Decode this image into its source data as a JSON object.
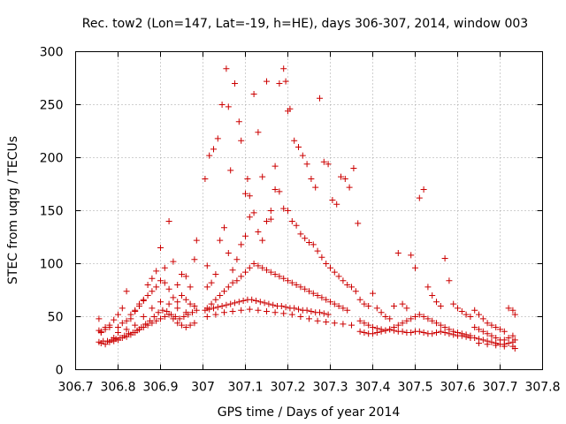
{
  "chart_data": {
    "type": "scatter",
    "title": "Rec. tow2 (Lon=147, Lat=-19, h=HE), days 306-307, 2014, window 003",
    "xlabel": "GPS time / Days of year 2014",
    "ylabel": "STEC from uqrg / TECUs",
    "xlim": [
      306.7,
      307.8
    ],
    "ylim": [
      0,
      300
    ],
    "xticks": [
      306.7,
      306.8,
      306.9,
      307,
      307.1,
      307.2,
      307.3,
      307.4,
      307.5,
      307.6,
      307.7,
      307.8
    ],
    "xtick_labels": [
      "306.7",
      "306.8",
      "306.9",
      "307",
      "307.1",
      "307.2",
      "307.3",
      "307.4",
      "307.5",
      "307.6",
      "307.7",
      "307.8"
    ],
    "yticks": [
      0,
      50,
      100,
      150,
      200,
      250,
      300
    ],
    "ytick_labels": [
      "0",
      "50",
      "100",
      "150",
      "200",
      "250",
      "300"
    ],
    "grid": true,
    "marker": "plus",
    "color": "#cc0000",
    "points": [
      [
        306.755,
        48
      ],
      [
        306.76,
        36
      ],
      [
        306.77,
        40
      ],
      [
        306.78,
        42
      ],
      [
        306.79,
        47
      ],
      [
        306.8,
        52
      ],
      [
        306.81,
        58
      ],
      [
        306.82,
        74
      ],
      [
        306.83,
        48
      ],
      [
        306.84,
        55
      ],
      [
        306.85,
        60
      ],
      [
        306.86,
        65
      ],
      [
        306.87,
        80
      ],
      [
        306.88,
        86
      ],
      [
        306.89,
        93
      ],
      [
        306.9,
        115
      ],
      [
        306.91,
        82
      ],
      [
        306.92,
        140
      ],
      [
        306.93,
        102
      ],
      [
        306.94,
        80
      ],
      [
        306.95,
        90
      ],
      [
        306.96,
        88
      ],
      [
        306.97,
        78
      ],
      [
        306.98,
        104
      ],
      [
        306.985,
        122
      ],
      [
        306.755,
        37
      ],
      [
        306.76,
        35
      ],
      [
        306.77,
        38
      ],
      [
        306.78,
        40
      ],
      [
        306.79,
        30
      ],
      [
        306.8,
        40
      ],
      [
        306.81,
        44
      ],
      [
        306.82,
        46
      ],
      [
        306.83,
        52
      ],
      [
        306.84,
        56
      ],
      [
        306.85,
        62
      ],
      [
        306.86,
        66
      ],
      [
        306.87,
        70
      ],
      [
        306.88,
        74
      ],
      [
        306.89,
        78
      ],
      [
        306.9,
        84
      ],
      [
        306.91,
        96
      ],
      [
        306.92,
        76
      ],
      [
        306.93,
        68
      ],
      [
        306.94,
        64
      ],
      [
        306.95,
        70
      ],
      [
        306.96,
        66
      ],
      [
        306.97,
        62
      ],
      [
        306.98,
        60
      ],
      [
        306.755,
        26
      ],
      [
        306.765,
        27
      ],
      [
        306.775,
        27
      ],
      [
        306.785,
        28
      ],
      [
        306.795,
        29
      ],
      [
        306.805,
        30
      ],
      [
        306.815,
        32
      ],
      [
        306.825,
        34
      ],
      [
        306.835,
        35
      ],
      [
        306.845,
        37
      ],
      [
        306.855,
        40
      ],
      [
        306.865,
        43
      ],
      [
        306.875,
        46
      ],
      [
        306.885,
        50
      ],
      [
        306.895,
        54
      ],
      [
        306.905,
        56
      ],
      [
        306.915,
        55
      ],
      [
        306.925,
        52
      ],
      [
        306.935,
        50
      ],
      [
        306.945,
        48
      ],
      [
        306.955,
        50
      ],
      [
        306.965,
        52
      ],
      [
        306.975,
        54
      ],
      [
        306.985,
        56
      ],
      [
        306.76,
        25
      ],
      [
        306.77,
        24
      ],
      [
        306.78,
        26
      ],
      [
        306.79,
        27
      ],
      [
        306.8,
        28
      ],
      [
        306.81,
        30
      ],
      [
        306.82,
        31
      ],
      [
        306.83,
        33
      ],
      [
        306.84,
        35
      ],
      [
        306.85,
        38
      ],
      [
        306.86,
        40
      ],
      [
        306.87,
        42
      ],
      [
        306.88,
        44
      ],
      [
        306.89,
        46
      ],
      [
        306.9,
        48
      ],
      [
        306.91,
        50
      ],
      [
        306.92,
        52
      ],
      [
        306.93,
        48
      ],
      [
        306.94,
        44
      ],
      [
        306.95,
        42
      ],
      [
        306.96,
        40
      ],
      [
        306.97,
        42
      ],
      [
        306.98,
        44
      ],
      [
        306.8,
        35
      ],
      [
        306.82,
        38
      ],
      [
        306.84,
        42
      ],
      [
        306.86,
        50
      ],
      [
        306.88,
        58
      ],
      [
        306.9,
        64
      ],
      [
        306.92,
        62
      ],
      [
        306.94,
        58
      ],
      [
        306.96,
        54
      ],
      [
        306.98,
        60
      ],
      [
        307.005,
        180
      ],
      [
        307.01,
        98
      ],
      [
        307.015,
        202
      ],
      [
        307.025,
        208
      ],
      [
        307.035,
        218
      ],
      [
        307.045,
        250
      ],
      [
        307.055,
        284
      ],
      [
        307.06,
        248
      ],
      [
        307.065,
        188
      ],
      [
        307.075,
        270
      ],
      [
        307.085,
        234
      ],
      [
        307.09,
        216
      ],
      [
        307.1,
        166
      ],
      [
        307.105,
        180
      ],
      [
        307.11,
        164
      ],
      [
        307.12,
        260
      ],
      [
        307.13,
        224
      ],
      [
        307.14,
        182
      ],
      [
        307.15,
        272
      ],
      [
        307.16,
        150
      ],
      [
        307.17,
        192
      ],
      [
        307.18,
        270
      ],
      [
        307.19,
        284
      ],
      [
        307.195,
        272
      ],
      [
        307.2,
        244
      ],
      [
        307.205,
        246
      ],
      [
        307.215,
        216
      ],
      [
        307.225,
        210
      ],
      [
        307.235,
        202
      ],
      [
        307.245,
        194
      ],
      [
        307.255,
        180
      ],
      [
        307.265,
        172
      ],
      [
        307.275,
        256
      ],
      [
        307.285,
        196
      ],
      [
        307.295,
        194
      ],
      [
        307.305,
        160
      ],
      [
        307.315,
        156
      ],
      [
        307.325,
        182
      ],
      [
        307.335,
        180
      ],
      [
        307.345,
        172
      ],
      [
        307.355,
        190
      ],
      [
        307.365,
        138
      ],
      [
        307.01,
        78
      ],
      [
        307.02,
        82
      ],
      [
        307.03,
        90
      ],
      [
        307.04,
        122
      ],
      [
        307.05,
        134
      ],
      [
        307.06,
        110
      ],
      [
        307.07,
        94
      ],
      [
        307.08,
        104
      ],
      [
        307.09,
        118
      ],
      [
        307.1,
        126
      ],
      [
        307.11,
        144
      ],
      [
        307.12,
        148
      ],
      [
        307.13,
        130
      ],
      [
        307.14,
        122
      ],
      [
        307.15,
        140
      ],
      [
        307.16,
        142
      ],
      [
        307.17,
        170
      ],
      [
        307.18,
        168
      ],
      [
        307.19,
        152
      ],
      [
        307.2,
        150
      ],
      [
        307.21,
        140
      ],
      [
        307.22,
        136
      ],
      [
        307.23,
        128
      ],
      [
        307.24,
        124
      ],
      [
        307.25,
        120
      ],
      [
        307.26,
        118
      ],
      [
        307.27,
        112
      ],
      [
        307.28,
        106
      ],
      [
        307.29,
        100
      ],
      [
        307.3,
        96
      ],
      [
        307.31,
        92
      ],
      [
        307.32,
        88
      ],
      [
        307.33,
        84
      ],
      [
        307.34,
        80
      ],
      [
        307.35,
        78
      ],
      [
        307.36,
        74
      ],
      [
        307.01,
        58
      ],
      [
        307.02,
        62
      ],
      [
        307.03,
        66
      ],
      [
        307.04,
        70
      ],
      [
        307.05,
        74
      ],
      [
        307.06,
        78
      ],
      [
        307.07,
        82
      ],
      [
        307.08,
        84
      ],
      [
        307.09,
        88
      ],
      [
        307.1,
        92
      ],
      [
        307.11,
        96
      ],
      [
        307.12,
        100
      ],
      [
        307.13,
        98
      ],
      [
        307.14,
        96
      ],
      [
        307.15,
        94
      ],
      [
        307.16,
        92
      ],
      [
        307.17,
        90
      ],
      [
        307.18,
        88
      ],
      [
        307.19,
        86
      ],
      [
        307.2,
        84
      ],
      [
        307.21,
        82
      ],
      [
        307.22,
        80
      ],
      [
        307.23,
        78
      ],
      [
        307.24,
        76
      ],
      [
        307.25,
        74
      ],
      [
        307.26,
        72
      ],
      [
        307.27,
        70
      ],
      [
        307.28,
        68
      ],
      [
        307.29,
        66
      ],
      [
        307.3,
        64
      ],
      [
        307.31,
        62
      ],
      [
        307.32,
        60
      ],
      [
        307.33,
        58
      ],
      [
        307.34,
        56
      ],
      [
        307.005,
        56
      ],
      [
        307.015,
        57
      ],
      [
        307.025,
        58
      ],
      [
        307.035,
        59
      ],
      [
        307.045,
        60
      ],
      [
        307.055,
        61
      ],
      [
        307.065,
        62
      ],
      [
        307.075,
        63
      ],
      [
        307.085,
        64
      ],
      [
        307.095,
        65
      ],
      [
        307.105,
        66
      ],
      [
        307.115,
        66
      ],
      [
        307.125,
        65
      ],
      [
        307.135,
        64
      ],
      [
        307.145,
        63
      ],
      [
        307.155,
        62
      ],
      [
        307.165,
        61
      ],
      [
        307.175,
        60
      ],
      [
        307.185,
        60
      ],
      [
        307.195,
        59
      ],
      [
        307.205,
        58
      ],
      [
        307.215,
        58
      ],
      [
        307.225,
        57
      ],
      [
        307.235,
        56
      ],
      [
        307.245,
        56
      ],
      [
        307.255,
        55
      ],
      [
        307.265,
        54
      ],
      [
        307.275,
        54
      ],
      [
        307.285,
        53
      ],
      [
        307.295,
        52
      ],
      [
        307.01,
        50
      ],
      [
        307.03,
        52
      ],
      [
        307.05,
        54
      ],
      [
        307.07,
        55
      ],
      [
        307.09,
        56
      ],
      [
        307.11,
        57
      ],
      [
        307.13,
        56
      ],
      [
        307.15,
        55
      ],
      [
        307.17,
        54
      ],
      [
        307.19,
        53
      ],
      [
        307.21,
        52
      ],
      [
        307.23,
        50
      ],
      [
        307.25,
        48
      ],
      [
        307.27,
        46
      ],
      [
        307.29,
        45
      ],
      [
        307.31,
        44
      ],
      [
        307.33,
        43
      ],
      [
        307.35,
        42
      ],
      [
        307.37,
        66
      ],
      [
        307.38,
        62
      ],
      [
        307.39,
        60
      ],
      [
        307.4,
        72
      ],
      [
        307.41,
        58
      ],
      [
        307.42,
        54
      ],
      [
        307.43,
        50
      ],
      [
        307.44,
        48
      ],
      [
        307.45,
        60
      ],
      [
        307.46,
        110
      ],
      [
        307.47,
        62
      ],
      [
        307.48,
        58
      ],
      [
        307.49,
        108
      ],
      [
        307.5,
        96
      ],
      [
        307.51,
        162
      ],
      [
        307.52,
        170
      ],
      [
        307.53,
        78
      ],
      [
        307.54,
        70
      ],
      [
        307.55,
        64
      ],
      [
        307.56,
        60
      ],
      [
        307.57,
        105
      ],
      [
        307.58,
        84
      ],
      [
        307.59,
        62
      ],
      [
        307.6,
        58
      ],
      [
        307.61,
        55
      ],
      [
        307.62,
        52
      ],
      [
        307.63,
        50
      ],
      [
        307.37,
        46
      ],
      [
        307.38,
        44
      ],
      [
        307.39,
        42
      ],
      [
        307.4,
        40
      ],
      [
        307.41,
        39
      ],
      [
        307.42,
        38
      ],
      [
        307.43,
        37
      ],
      [
        307.44,
        38
      ],
      [
        307.45,
        40
      ],
      [
        307.46,
        42
      ],
      [
        307.47,
        44
      ],
      [
        307.48,
        46
      ],
      [
        307.49,
        48
      ],
      [
        307.5,
        50
      ],
      [
        307.51,
        52
      ],
      [
        307.52,
        50
      ],
      [
        307.53,
        48
      ],
      [
        307.54,
        46
      ],
      [
        307.55,
        44
      ],
      [
        307.56,
        42
      ],
      [
        307.57,
        40
      ],
      [
        307.58,
        38
      ],
      [
        307.59,
        36
      ],
      [
        307.6,
        35
      ],
      [
        307.61,
        34
      ],
      [
        307.62,
        33
      ],
      [
        307.63,
        32
      ],
      [
        307.37,
        36
      ],
      [
        307.38,
        35
      ],
      [
        307.39,
        34
      ],
      [
        307.4,
        34
      ],
      [
        307.41,
        35
      ],
      [
        307.42,
        36
      ],
      [
        307.43,
        37
      ],
      [
        307.44,
        38
      ],
      [
        307.45,
        37
      ],
      [
        307.46,
        36
      ],
      [
        307.47,
        36
      ],
      [
        307.48,
        35
      ],
      [
        307.49,
        35
      ],
      [
        307.5,
        36
      ],
      [
        307.51,
        36
      ],
      [
        307.52,
        35
      ],
      [
        307.53,
        34
      ],
      [
        307.54,
        34
      ],
      [
        307.55,
        35
      ],
      [
        307.56,
        36
      ],
      [
        307.57,
        35
      ],
      [
        307.58,
        34
      ],
      [
        307.59,
        33
      ],
      [
        307.6,
        32
      ],
      [
        307.61,
        32
      ],
      [
        307.62,
        31
      ],
      [
        307.63,
        30
      ],
      [
        307.64,
        56
      ],
      [
        307.65,
        52
      ],
      [
        307.66,
        48
      ],
      [
        307.67,
        44
      ],
      [
        307.68,
        42
      ],
      [
        307.69,
        40
      ],
      [
        307.7,
        38
      ],
      [
        307.71,
        36
      ],
      [
        307.72,
        58
      ],
      [
        307.73,
        56
      ],
      [
        307.64,
        40
      ],
      [
        307.65,
        38
      ],
      [
        307.66,
        36
      ],
      [
        307.67,
        34
      ],
      [
        307.68,
        32
      ],
      [
        307.69,
        30
      ],
      [
        307.7,
        28
      ],
      [
        307.71,
        28
      ],
      [
        307.72,
        30
      ],
      [
        307.73,
        32
      ],
      [
        307.64,
        30
      ],
      [
        307.65,
        29
      ],
      [
        307.66,
        28
      ],
      [
        307.67,
        27
      ],
      [
        307.68,
        26
      ],
      [
        307.69,
        25
      ],
      [
        307.7,
        24
      ],
      [
        307.71,
        24
      ],
      [
        307.72,
        25
      ],
      [
        307.73,
        26
      ],
      [
        307.65,
        25
      ],
      [
        307.67,
        24
      ],
      [
        307.69,
        23
      ],
      [
        307.71,
        22
      ],
      [
        307.73,
        22
      ],
      [
        307.735,
        20
      ],
      [
        307.735,
        28
      ],
      [
        307.735,
        52
      ]
    ]
  }
}
